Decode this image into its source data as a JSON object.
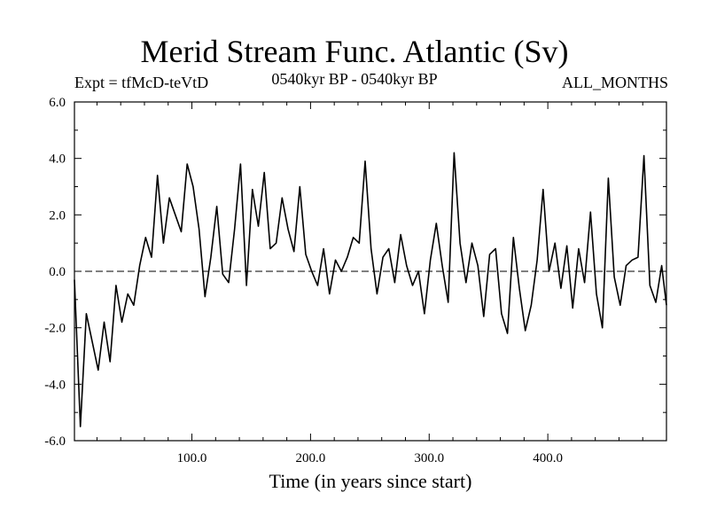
{
  "chart_data": {
    "type": "line",
    "title": "Merid Stream Func. Atlantic (Sv)",
    "expt_label": "Expt = tfMcD-teVtD",
    "period_label": "0540kyr BP - 0540kyr BP",
    "months_label": "ALL_MONTHS",
    "xlabel": "Time (in years since start)",
    "ylabel": "",
    "xlim": [
      1,
      500
    ],
    "ylim": [
      -6.0,
      6.0
    ],
    "x_ticks": [
      "100.0",
      "200.0",
      "300.0",
      "400.0"
    ],
    "y_ticks": [
      "6.0",
      "4.0",
      "2.0",
      "0.0",
      "-2.0",
      "-4.0",
      "-6.0"
    ],
    "zero_line": true,
    "series": [
      {
        "x_start": 1,
        "x_step": 5,
        "values": [
          -0.3,
          -5.5,
          -1.5,
          -2.5,
          -3.5,
          -1.8,
          -3.2,
          -0.5,
          -1.8,
          -0.8,
          -1.2,
          0.2,
          1.2,
          0.5,
          3.4,
          1.0,
          2.6,
          2.0,
          1.4,
          3.8,
          3.0,
          1.5,
          -0.9,
          0.5,
          2.3,
          -0.1,
          -0.4,
          1.5,
          3.8,
          -0.5,
          2.9,
          1.6,
          3.5,
          0.8,
          1.0,
          2.6,
          1.5,
          0.7,
          3.0,
          0.6,
          0.0,
          -0.5,
          0.8,
          -0.8,
          0.4,
          0.0,
          0.5,
          1.2,
          1.0,
          3.9,
          0.8,
          -0.8,
          0.5,
          0.8,
          -0.4,
          1.3,
          0.2,
          -0.5,
          0.0,
          -1.5,
          0.4,
          1.7,
          0.2,
          -1.1,
          4.2,
          1.0,
          -0.4,
          1.0,
          0.2,
          -1.6,
          0.6,
          0.8,
          -1.5,
          -2.2,
          1.2,
          -0.6,
          -2.1,
          -1.2,
          0.4,
          2.9,
          0.0,
          1.0,
          -0.6,
          0.9,
          -1.3,
          0.8,
          -0.4,
          2.1,
          -0.8,
          -2.0,
          3.3,
          -0.2,
          -1.2,
          0.2,
          0.4,
          0.5,
          4.1,
          -0.5,
          -1.1,
          0.2,
          -1.2
        ]
      }
    ]
  }
}
